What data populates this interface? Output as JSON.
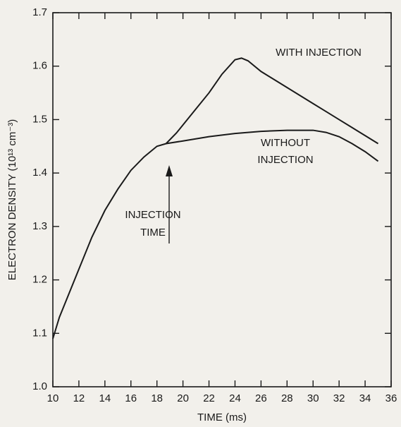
{
  "chart_data": {
    "type": "line",
    "xlabel": "TIME (ms)",
    "ylabel": "ELECTRON DENSITY (10¹³ cm⁻³)",
    "annotations": [
      "INJECTION TIME"
    ],
    "series": [
      {
        "name": "WITH INJECTION",
        "color": "#1a1a1a",
        "x": [
          18.7,
          19.5,
          20,
          21,
          22,
          23,
          24,
          24.5,
          25,
          26,
          27,
          28,
          29,
          30,
          31,
          32,
          33,
          34,
          35
        ],
        "values": [
          1.455,
          1.475,
          1.49,
          1.52,
          1.55,
          1.585,
          1.612,
          1.615,
          1.61,
          1.59,
          1.575,
          1.56,
          1.545,
          1.53,
          1.515,
          1.5,
          1.485,
          1.47,
          1.455
        ]
      },
      {
        "name": "WITHOUT INJECTION",
        "color": "#1a1a1a",
        "x": [
          10,
          10.5,
          11,
          12,
          13,
          14,
          15,
          16,
          17,
          18,
          18.7,
          20,
          22,
          24,
          26,
          28,
          30,
          31,
          32,
          33,
          34,
          35
        ],
        "values": [
          1.09,
          1.13,
          1.16,
          1.22,
          1.28,
          1.33,
          1.37,
          1.405,
          1.43,
          1.45,
          1.455,
          1.46,
          1.468,
          1.474,
          1.478,
          1.48,
          1.48,
          1.476,
          1.468,
          1.455,
          1.44,
          1.422
        ]
      }
    ],
    "xlim": [
      10,
      36
    ],
    "xticks": [
      10,
      12,
      14,
      16,
      18,
      20,
      22,
      24,
      26,
      28,
      30,
      32,
      34,
      36
    ],
    "ylim": [
      1.0,
      1.7
    ],
    "yticks": [
      {
        "value": 1,
        "label": "1.0"
      },
      1.1,
      1.2,
      1.3,
      1.4,
      1.5,
      1.6,
      1.7
    ]
  }
}
